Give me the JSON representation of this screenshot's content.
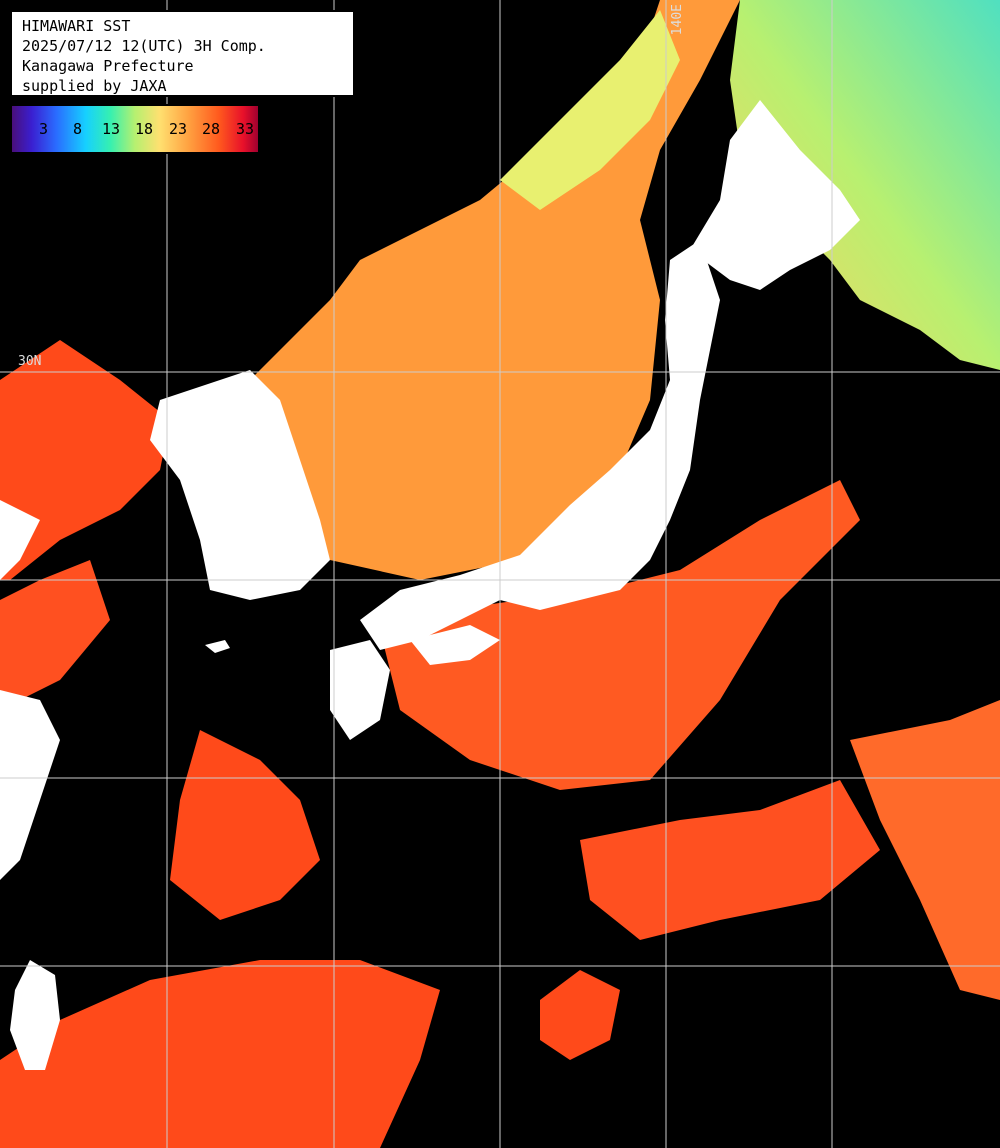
{
  "title_lines": [
    "HIMAWARI SST",
    "2025/07/12 12(UTC) 3H Comp.",
    "Kanagawa Prefecture",
    "supplied by JAXA"
  ],
  "legend": {
    "ticks": [
      "3",
      "8",
      "13",
      "18",
      "23",
      "28",
      "33"
    ],
    "colors": [
      "#4a0f7a",
      "#2a6cff",
      "#16d0ff",
      "#36f0b0",
      "#b6f070",
      "#ffe070",
      "#ffa040",
      "#ff5a1e",
      "#e8102a"
    ]
  },
  "grid_labels": [
    "30N",
    "140E"
  ],
  "colors": {
    "land": "#ffffff",
    "cloud": "#000000",
    "grid": "#cccccc",
    "sea_warm": "#ff4a1a",
    "sea_mid": "#ff9a3a",
    "sea_cool": "#c8f070",
    "sea_cold": "#40e0e0"
  }
}
